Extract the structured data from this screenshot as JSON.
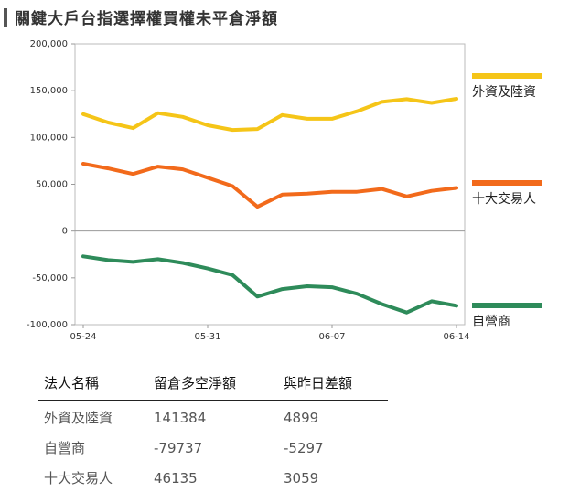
{
  "title": "關鍵大戶台指選擇權買權未平倉淨額",
  "chart_data": {
    "type": "line",
    "title": "關鍵大戶台指選擇權買權未平倉淨額",
    "ylim": [
      -100000,
      200000
    ],
    "yticks": [
      200000,
      150000,
      100000,
      50000,
      0,
      -50000,
      -100000
    ],
    "ytick_labels": [
      "200,000",
      "150,000",
      "100,000",
      "50,000",
      "0",
      "-50,000",
      "-100,000"
    ],
    "x": [
      "05-24",
      "05-25",
      "05-28",
      "05-29",
      "05-30",
      "05-31",
      "06-01",
      "06-04",
      "06-05",
      "06-06",
      "06-07",
      "06-08",
      "06-11",
      "06-12",
      "06-13",
      "06-14"
    ],
    "xtick_labels": [
      "05-24",
      "05-31",
      "06-07",
      "06-14"
    ],
    "series": [
      {
        "name": "外資及陸資",
        "color": "#F5C518",
        "values": [
          125000,
          116000,
          110000,
          126000,
          122000,
          113000,
          108000,
          109000,
          124000,
          120000,
          120000,
          128000,
          138000,
          141000,
          137000,
          141384
        ]
      },
      {
        "name": "十大交易人",
        "color": "#F26A1B",
        "values": [
          72000,
          67000,
          61000,
          69000,
          66000,
          57000,
          48000,
          26000,
          39000,
          40000,
          42000,
          42000,
          45000,
          37000,
          43000,
          46135
        ]
      },
      {
        "name": "自營商",
        "color": "#2E8B5A",
        "values": [
          -27000,
          -31000,
          -33000,
          -30000,
          -34000,
          -40000,
          -47000,
          -70000,
          -62000,
          -59000,
          -60000,
          -67000,
          -78000,
          -87000,
          -75000,
          -79737
        ]
      }
    ],
    "legend_position": "right"
  },
  "table": {
    "headers": [
      "法人名稱",
      "留倉多空淨額",
      "與昨日差額"
    ],
    "rows": [
      [
        "外資及陸資",
        "141384",
        "4899"
      ],
      [
        "自營商",
        "-79737",
        "-5297"
      ],
      [
        "十大交易人",
        "46135",
        "3059"
      ]
    ]
  }
}
